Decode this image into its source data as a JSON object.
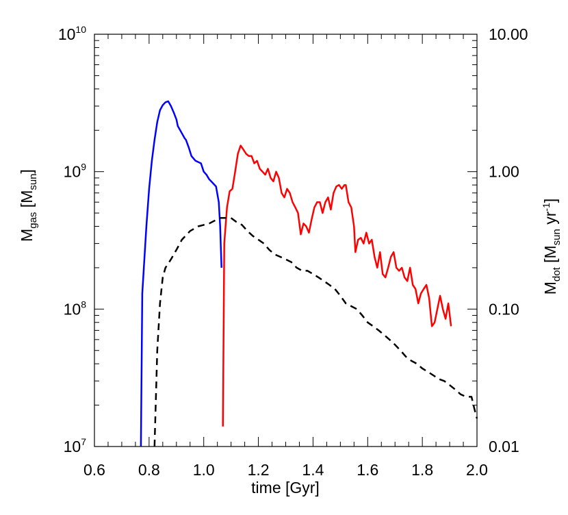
{
  "chart_data": {
    "type": "line",
    "xlabel": "time [Gyr]",
    "ylabel_left": {
      "base": "M",
      "sub": "gas",
      "rest_open": " [M",
      "sub2": "sun",
      "rest_close": "]"
    },
    "ylabel_right": {
      "base": "M",
      "sub": "dot",
      "rest_open": " [M",
      "sub2": "sun",
      "mid": " yr",
      "sup": "-1",
      "rest_close": "]"
    },
    "xlim": [
      0.6,
      2.0
    ],
    "ylim_left": [
      10000000,
      10000000000
    ],
    "ylim_right": [
      0.01,
      10.0
    ],
    "yscale": "log",
    "grid": false,
    "x_ticks": [
      "0.6",
      "0.8",
      "1.0",
      "1.2",
      "1.4",
      "1.6",
      "1.8",
      "2.0"
    ],
    "y_ticks_left": [
      {
        "value": 10000000,
        "base": "10",
        "exp": "7"
      },
      {
        "value": 100000000,
        "base": "10",
        "exp": "8"
      },
      {
        "value": 1000000000,
        "base": "10",
        "exp": "9"
      },
      {
        "value": 10000000000,
        "base": "10",
        "exp": "10"
      }
    ],
    "y_ticks_right": [
      {
        "value": 0.01,
        "label": "0.01"
      },
      {
        "value": 0.1,
        "label": "0.10"
      },
      {
        "value": 1.0,
        "label": "1.00"
      },
      {
        "value": 10.0,
        "label": "10.00"
      }
    ],
    "series": [
      {
        "axis": "left",
        "color": "#0000ff",
        "style": "solid",
        "points": [
          [
            0.77,
            10000000
          ],
          [
            0.775,
            130000000
          ],
          [
            0.79,
            400000000
          ],
          [
            0.8,
            750000000
          ],
          [
            0.81,
            1200000000
          ],
          [
            0.82,
            1700000000
          ],
          [
            0.83,
            2300000000
          ],
          [
            0.84,
            2800000000
          ],
          [
            0.85,
            3050000000
          ],
          [
            0.86,
            3200000000
          ],
          [
            0.87,
            3250000000
          ],
          [
            0.88,
            3000000000
          ],
          [
            0.89,
            2700000000
          ],
          [
            0.9,
            2400000000
          ],
          [
            0.905,
            2150000000
          ],
          [
            0.92,
            1900000000
          ],
          [
            0.93,
            1750000000
          ],
          [
            0.935,
            1700000000
          ],
          [
            0.945,
            1500000000
          ],
          [
            0.955,
            1300000000
          ],
          [
            0.97,
            1200000000
          ],
          [
            0.99,
            1150000000
          ],
          [
            1.0,
            1000000000
          ],
          [
            1.01,
            950000000
          ],
          [
            1.02,
            880000000
          ],
          [
            1.035,
            820000000
          ],
          [
            1.045,
            780000000
          ],
          [
            1.055,
            600000000
          ],
          [
            1.06,
            400000000
          ],
          [
            1.065,
            200000000
          ]
        ]
      },
      {
        "axis": "right",
        "color": "#ff0000",
        "style": "solid",
        "points": [
          [
            1.07,
            0.014
          ],
          [
            1.075,
            0.3
          ],
          [
            1.085,
            0.55
          ],
          [
            1.095,
            0.72
          ],
          [
            1.105,
            0.75
          ],
          [
            1.115,
            1.0
          ],
          [
            1.125,
            1.35
          ],
          [
            1.135,
            1.55
          ],
          [
            1.145,
            1.45
          ],
          [
            1.155,
            1.35
          ],
          [
            1.165,
            1.3
          ],
          [
            1.175,
            1.3
          ],
          [
            1.185,
            1.15
          ],
          [
            1.195,
            1.2
          ],
          [
            1.205,
            1.05
          ],
          [
            1.215,
            1.0
          ],
          [
            1.225,
            0.95
          ],
          [
            1.235,
            1.05
          ],
          [
            1.245,
            0.9
          ],
          [
            1.255,
            0.85
          ],
          [
            1.265,
            1.0
          ],
          [
            1.275,
            0.9
          ],
          [
            1.285,
            0.7
          ],
          [
            1.295,
            0.65
          ],
          [
            1.305,
            0.75
          ],
          [
            1.315,
            0.7
          ],
          [
            1.325,
            0.6
          ],
          [
            1.335,
            0.55
          ],
          [
            1.345,
            0.5
          ],
          [
            1.355,
            0.35
          ],
          [
            1.365,
            0.42
          ],
          [
            1.375,
            0.4
          ],
          [
            1.385,
            0.36
          ],
          [
            1.395,
            0.45
          ],
          [
            1.405,
            0.55
          ],
          [
            1.415,
            0.6
          ],
          [
            1.425,
            0.6
          ],
          [
            1.435,
            0.5
          ],
          [
            1.445,
            0.6
          ],
          [
            1.455,
            0.65
          ],
          [
            1.465,
            0.53
          ],
          [
            1.475,
            0.7
          ],
          [
            1.485,
            0.78
          ],
          [
            1.495,
            0.8
          ],
          [
            1.505,
            0.75
          ],
          [
            1.515,
            0.8
          ],
          [
            1.52,
            0.8
          ],
          [
            1.53,
            0.6
          ],
          [
            1.54,
            0.55
          ],
          [
            1.55,
            0.4
          ],
          [
            1.555,
            0.26
          ],
          [
            1.565,
            0.32
          ],
          [
            1.575,
            0.33
          ],
          [
            1.585,
            0.3
          ],
          [
            1.595,
            0.36
          ],
          [
            1.605,
            0.3
          ],
          [
            1.615,
            0.32
          ],
          [
            1.625,
            0.24
          ],
          [
            1.635,
            0.2
          ],
          [
            1.645,
            0.26
          ],
          [
            1.655,
            0.18
          ],
          [
            1.665,
            0.17
          ],
          [
            1.675,
            0.2
          ],
          [
            1.685,
            0.24
          ],
          [
            1.695,
            0.26
          ],
          [
            1.705,
            0.2
          ],
          [
            1.715,
            0.19
          ],
          [
            1.725,
            0.2
          ],
          [
            1.735,
            0.17
          ],
          [
            1.745,
            0.16
          ],
          [
            1.755,
            0.2
          ],
          [
            1.765,
            0.15
          ],
          [
            1.775,
            0.14
          ],
          [
            1.785,
            0.11
          ],
          [
            1.795,
            0.13
          ],
          [
            1.805,
            0.14
          ],
          [
            1.815,
            0.15
          ],
          [
            1.825,
            0.12
          ],
          [
            1.835,
            0.075
          ],
          [
            1.845,
            0.08
          ],
          [
            1.855,
            0.1
          ],
          [
            1.865,
            0.125
          ],
          [
            1.875,
            0.1
          ],
          [
            1.885,
            0.085
          ],
          [
            1.895,
            0.11
          ],
          [
            1.905,
            0.075
          ]
        ]
      },
      {
        "axis": "left",
        "color": "#000000",
        "style": "dashed",
        "points": [
          [
            0.82,
            10000000
          ],
          [
            0.83,
            50000000
          ],
          [
            0.84,
            110000000
          ],
          [
            0.85,
            170000000
          ],
          [
            0.86,
            200000000
          ],
          [
            0.88,
            230000000
          ],
          [
            0.9,
            270000000
          ],
          [
            0.92,
            320000000
          ],
          [
            0.95,
            370000000
          ],
          [
            0.98,
            400000000
          ],
          [
            1.0,
            410000000
          ],
          [
            1.02,
            420000000
          ],
          [
            1.04,
            440000000
          ],
          [
            1.06,
            460000000
          ],
          [
            1.08,
            460000000
          ],
          [
            1.1,
            460000000
          ],
          [
            1.12,
            430000000
          ],
          [
            1.14,
            410000000
          ],
          [
            1.16,
            370000000
          ],
          [
            1.18,
            340000000
          ],
          [
            1.2,
            320000000
          ],
          [
            1.22,
            300000000
          ],
          [
            1.24,
            270000000
          ],
          [
            1.26,
            250000000
          ],
          [
            1.28,
            240000000
          ],
          [
            1.3,
            230000000
          ],
          [
            1.32,
            220000000
          ],
          [
            1.34,
            200000000
          ],
          [
            1.36,
            190000000
          ],
          [
            1.38,
            190000000
          ],
          [
            1.4,
            180000000
          ],
          [
            1.42,
            170000000
          ],
          [
            1.44,
            160000000
          ],
          [
            1.46,
            150000000
          ],
          [
            1.48,
            140000000
          ],
          [
            1.5,
            125000000
          ],
          [
            1.52,
            110000000
          ],
          [
            1.54,
            105000000
          ],
          [
            1.56,
            100000000
          ],
          [
            1.58,
            90000000
          ],
          [
            1.6,
            80000000
          ],
          [
            1.62,
            75000000
          ],
          [
            1.64,
            70000000
          ],
          [
            1.66,
            65000000
          ],
          [
            1.68,
            60000000
          ],
          [
            1.7,
            55000000
          ],
          [
            1.72,
            50000000
          ],
          [
            1.74,
            45000000
          ],
          [
            1.76,
            42000000
          ],
          [
            1.78,
            40000000
          ],
          [
            1.8,
            37000000
          ],
          [
            1.82,
            35000000
          ],
          [
            1.84,
            33000000
          ],
          [
            1.86,
            31000000
          ],
          [
            1.88,
            30000000
          ],
          [
            1.9,
            28000000
          ],
          [
            1.92,
            26000000
          ],
          [
            1.94,
            24000000
          ],
          [
            1.96,
            23000000
          ],
          [
            1.98,
            23000000
          ],
          [
            1.99,
            19000000
          ],
          [
            2.0,
            16000000
          ]
        ]
      }
    ]
  }
}
